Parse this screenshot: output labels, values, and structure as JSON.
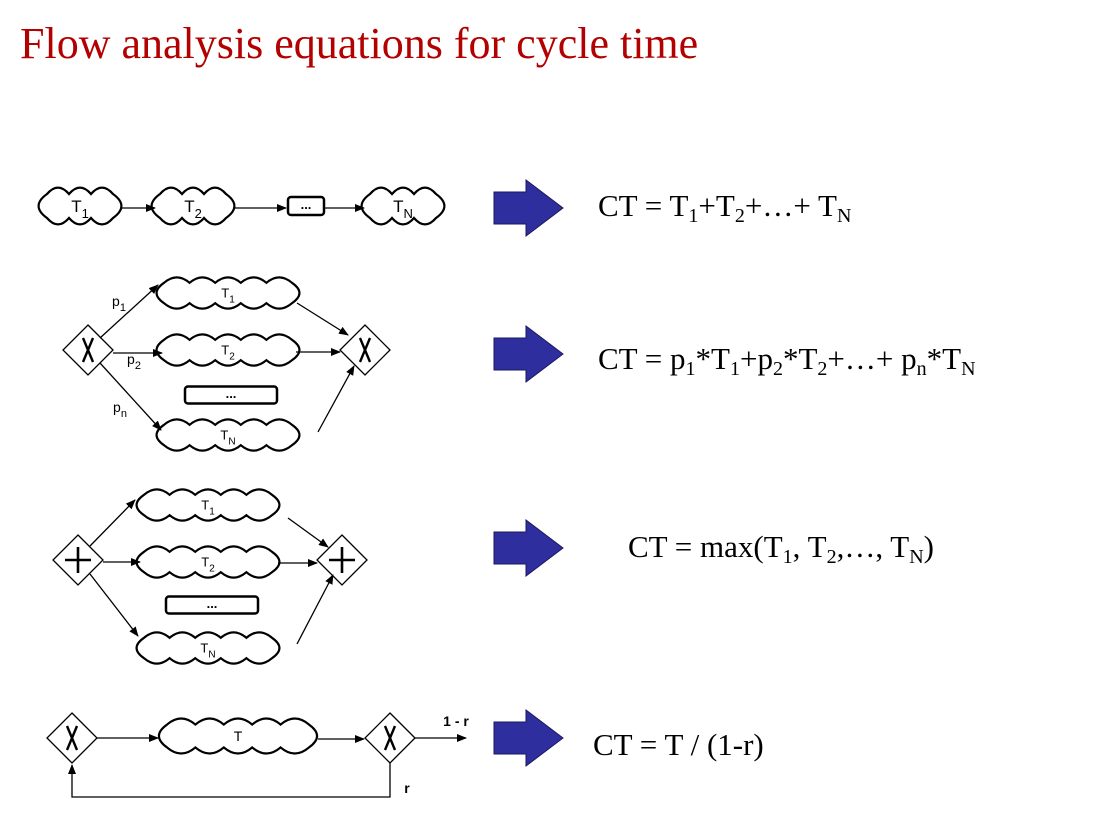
{
  "title": "Flow analysis equations for cycle time",
  "rows": [
    {
      "diagram": {
        "tasks": [
          {
            "t": "T",
            "s": "1"
          },
          {
            "t": "T",
            "s": "2"
          },
          {
            "t": "T",
            "s": "N"
          }
        ],
        "ellipsis": "..."
      },
      "equation": [
        {
          "t": "CT = T"
        },
        {
          "s": "1"
        },
        {
          "t": "+T"
        },
        {
          "s": "2"
        },
        {
          "t": "+…+ T"
        },
        {
          "s": "N"
        }
      ]
    },
    {
      "diagram": {
        "gateway": "X",
        "tasks": [
          {
            "t": "T",
            "s": "1"
          },
          {
            "t": "T",
            "s": "2"
          },
          {
            "t": "T",
            "s": "N"
          }
        ],
        "probabilities": [
          {
            "t": "p",
            "s": "1"
          },
          {
            "t": "p",
            "s": "2"
          },
          {
            "t": "p",
            "s": "n"
          }
        ],
        "ellipsis": "..."
      },
      "equation": [
        {
          "t": "CT = p"
        },
        {
          "s": "1"
        },
        {
          "t": "*T"
        },
        {
          "s": "1"
        },
        {
          "t": "+p"
        },
        {
          "s": "2"
        },
        {
          "t": "*T"
        },
        {
          "s": "2"
        },
        {
          "t": "+…+ p"
        },
        {
          "s": "n"
        },
        {
          "t": "*T"
        },
        {
          "s": "N"
        }
      ]
    },
    {
      "diagram": {
        "gateway": "+",
        "tasks": [
          {
            "t": "T",
            "s": "1"
          },
          {
            "t": "T",
            "s": "2"
          },
          {
            "t": "T",
            "s": "N"
          }
        ],
        "ellipsis": "..."
      },
      "equation": [
        {
          "t": "CT = max(T"
        },
        {
          "s": "1"
        },
        {
          "t": ", T"
        },
        {
          "s": "2"
        },
        {
          "t": ",…, T"
        },
        {
          "s": "N"
        },
        {
          "t": ")"
        }
      ]
    },
    {
      "diagram": {
        "gateway": "X",
        "task": "T",
        "exit_label": "1 - r",
        "loop_label": "r"
      },
      "equation": [
        {
          "t": "CT = T / (1-r)"
        }
      ]
    }
  ],
  "colors": {
    "title": "#b30000",
    "arrow_fill": "#2e2e9e",
    "arrow_stroke": "#1a1a5c"
  }
}
